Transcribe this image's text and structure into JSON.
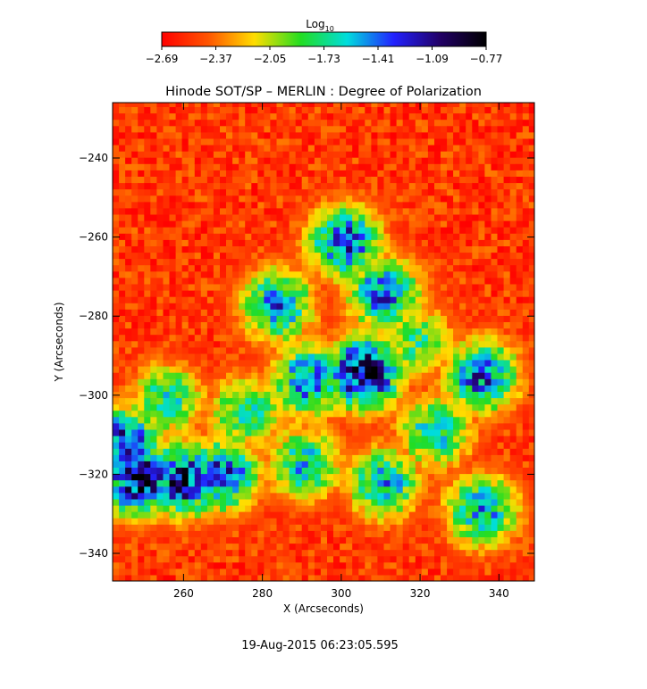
{
  "chart_data": {
    "type": "heatmap",
    "title": "Hinode SOT/SP – MERLIN : Degree of Polarization",
    "xlabel": "X (Arcseconds)",
    "ylabel": "Y (Arcseconds)",
    "xlim": [
      242,
      349
    ],
    "ylim": [
      -347,
      -226
    ],
    "xticks": [
      260,
      280,
      300,
      320,
      340
    ],
    "yticks": [
      -340,
      -320,
      -300,
      -280,
      -260,
      -240
    ],
    "colorbar": {
      "label_base": "Log",
      "label_sub": "10",
      "range": [
        -2.69,
        -0.77
      ],
      "ticks": [
        "−2.69",
        "−2.37",
        "−2.05",
        "−1.73",
        "−1.41",
        "−1.09",
        "−0.77"
      ],
      "stops": [
        "#ff0000",
        "#ff5500",
        "#ffdd00",
        "#22dd22",
        "#00dddd",
        "#2222ff",
        "#220066",
        "#000000"
      ]
    },
    "features": [
      {
        "x": 305,
        "y": -295,
        "value": -0.85
      },
      {
        "x": 291,
        "y": -297,
        "value": -1.3
      },
      {
        "x": 248,
        "y": -322,
        "value": -0.9
      },
      {
        "x": 259,
        "y": -322,
        "value": -1.0
      },
      {
        "x": 269,
        "y": -321,
        "value": -1.2
      },
      {
        "x": 244,
        "y": -313,
        "value": -1.1
      },
      {
        "x": 300,
        "y": -262,
        "value": -1.2
      },
      {
        "x": 310,
        "y": -275,
        "value": -1.3
      },
      {
        "x": 283,
        "y": -278,
        "value": -1.35
      },
      {
        "x": 335,
        "y": -296,
        "value": -1.25
      },
      {
        "x": 323,
        "y": -310,
        "value": -1.5
      },
      {
        "x": 335,
        "y": -330,
        "value": -1.4
      },
      {
        "x": 290,
        "y": -318,
        "value": -1.5
      },
      {
        "x": 310,
        "y": -323,
        "value": -1.45
      },
      {
        "x": 255,
        "y": -302,
        "value": -1.6
      },
      {
        "x": 318,
        "y": -287,
        "value": -1.7
      },
      {
        "x": 275,
        "y": -305,
        "value": -1.6
      }
    ],
    "background_value": -2.69
  },
  "footer": {
    "timestamp": "19-Aug-2015 06:23:05.595"
  }
}
